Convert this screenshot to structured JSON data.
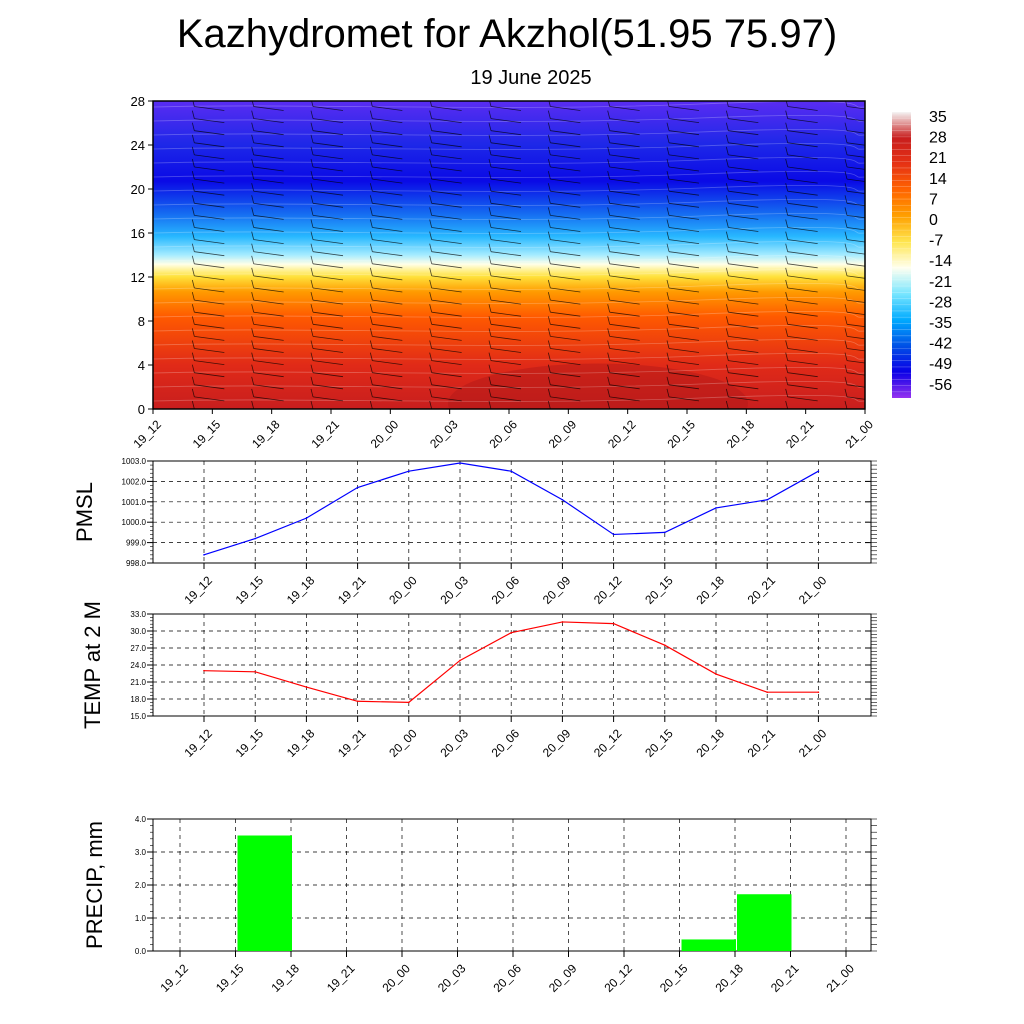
{
  "header": {
    "title": "Kazhydromet for Akzhol(51.95 75.97)",
    "subtitle": "19 June 2025"
  },
  "chart_data": [
    {
      "type": "heatmap",
      "title": "",
      "xlabel": "",
      "ylabel": "",
      "x_ticks": [
        "19_12",
        "19_15",
        "19_18",
        "19_21",
        "20_00",
        "20_03",
        "20_06",
        "20_09",
        "20_12",
        "20_15",
        "20_18",
        "20_21",
        "21_00"
      ],
      "y_ticks": [
        0,
        4,
        8,
        12,
        16,
        20,
        24,
        28
      ],
      "ylim": [
        0,
        28
      ],
      "colorbar_labels": [
        "35",
        "28",
        "21",
        "14",
        "7",
        "0",
        "-7",
        "-14",
        "-21",
        "-28",
        "-35",
        "-42",
        "-49",
        "-56"
      ],
      "colors": [
        "#f4f4f4",
        "#c81e1e",
        "#e63214",
        "#ff6400",
        "#ffa000",
        "#ffe650",
        "#fffff0",
        "#78e6ff",
        "#00aaff",
        "#0050e6",
        "#0a00e6",
        "#9632f0"
      ],
      "overlay": "wind barbs"
    },
    {
      "type": "line",
      "title": "",
      "xlabel": "",
      "ylabel": "PMSL",
      "categories": [
        "19_12",
        "19_15",
        "19_18",
        "19_21",
        "20_00",
        "20_03",
        "20_06",
        "20_09",
        "20_12",
        "20_15",
        "20_18",
        "20_21",
        "21_00"
      ],
      "values": [
        998.4,
        999.2,
        1000.2,
        1001.7,
        1002.5,
        1002.9,
        1002.5,
        1001.1,
        999.4,
        999.5,
        1000.7,
        1001.1,
        1002.5
      ],
      "ylim": [
        998.0,
        1003.0
      ],
      "y_ticks": [
        "998.0",
        "999.0",
        "1000.0",
        "1001.0",
        "1002.0",
        "1003.0"
      ],
      "color": "#0000ff",
      "grid": true
    },
    {
      "type": "line",
      "title": "",
      "xlabel": "",
      "ylabel": "TEMP at 2 M",
      "categories": [
        "19_12",
        "19_15",
        "19_18",
        "19_21",
        "20_00",
        "20_03",
        "20_06",
        "20_09",
        "20_12",
        "20_15",
        "20_18",
        "20_21",
        "21_00"
      ],
      "values": [
        23.0,
        22.8,
        20.1,
        17.6,
        17.4,
        24.8,
        29.7,
        31.6,
        31.3,
        27.5,
        22.4,
        19.2,
        19.2
      ],
      "ylim": [
        15.0,
        33.0
      ],
      "y_ticks": [
        "15.0",
        "18.0",
        "21.0",
        "24.0",
        "27.0",
        "30.0",
        "33.0"
      ],
      "color": "#ff0000",
      "grid": true
    },
    {
      "type": "bar",
      "title": "",
      "xlabel": "",
      "ylabel": "PRECIP, mm",
      "categories": [
        "19_12",
        "19_15",
        "19_18",
        "19_21",
        "20_00",
        "20_03",
        "20_06",
        "20_09",
        "20_12",
        "20_15",
        "20_18",
        "20_21",
        "21_00"
      ],
      "values": [
        0,
        3.5,
        0,
        0,
        0,
        0,
        0,
        0,
        0,
        0.35,
        1.72,
        0,
        0
      ],
      "ylim": [
        0.0,
        4.0
      ],
      "y_ticks": [
        "0.0",
        "1.0",
        "2.0",
        "3.0",
        "4.0"
      ],
      "color": "#00ff00",
      "grid": true
    }
  ]
}
